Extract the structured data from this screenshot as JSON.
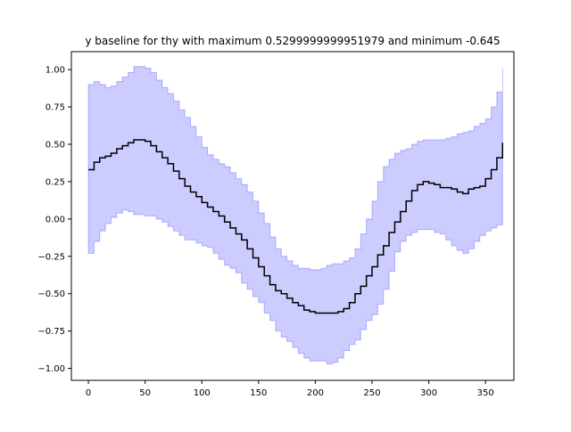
{
  "chart_data": {
    "type": "area",
    "title": "y baseline for thy with maximum 0.5299999999951979 and minimum -0.645",
    "xlabel": "",
    "ylabel": "",
    "xlim": [
      -15,
      375
    ],
    "ylim": [
      -1.08,
      1.12
    ],
    "x_ticks": [
      0,
      50,
      100,
      150,
      200,
      250,
      300,
      350
    ],
    "x_tick_labels": [
      "0",
      "50",
      "100",
      "150",
      "200",
      "250",
      "300",
      "350"
    ],
    "y_ticks": [
      -1.0,
      -0.75,
      -0.5,
      -0.25,
      0.0,
      0.25,
      0.5,
      0.75,
      1.0
    ],
    "y_tick_labels": [
      "−1.00",
      "−0.75",
      "−0.50",
      "−0.25",
      "0.00",
      "0.25",
      "0.50",
      "0.75",
      "1.00"
    ],
    "grid": false,
    "series": [
      {
        "kind": "line",
        "color": "#000000",
        "x": [
          0,
          5,
          10,
          15,
          20,
          25,
          30,
          35,
          40,
          45,
          50,
          55,
          60,
          65,
          70,
          75,
          80,
          85,
          90,
          95,
          100,
          105,
          110,
          115,
          120,
          125,
          130,
          135,
          140,
          145,
          150,
          155,
          160,
          165,
          170,
          175,
          180,
          185,
          190,
          195,
          200,
          205,
          210,
          215,
          220,
          225,
          230,
          235,
          240,
          245,
          250,
          255,
          260,
          265,
          270,
          275,
          280,
          285,
          290,
          295,
          300,
          305,
          310,
          315,
          320,
          325,
          330,
          335,
          340,
          345,
          350,
          355,
          360,
          365
        ],
        "y": [
          0.33,
          0.38,
          0.41,
          0.42,
          0.44,
          0.47,
          0.49,
          0.51,
          0.53,
          0.53,
          0.52,
          0.49,
          0.45,
          0.41,
          0.37,
          0.32,
          0.27,
          0.22,
          0.18,
          0.15,
          0.11,
          0.08,
          0.05,
          0.02,
          -0.02,
          -0.06,
          -0.1,
          -0.14,
          -0.2,
          -0.26,
          -0.32,
          -0.38,
          -0.44,
          -0.48,
          -0.5,
          -0.53,
          -0.56,
          -0.58,
          -0.61,
          -0.62,
          -0.63,
          -0.63,
          -0.63,
          -0.63,
          -0.62,
          -0.6,
          -0.56,
          -0.5,
          -0.45,
          -0.38,
          -0.32,
          -0.24,
          -0.18,
          -0.09,
          -0.02,
          0.05,
          0.12,
          0.19,
          0.23,
          0.25,
          0.24,
          0.23,
          0.21,
          0.21,
          0.2,
          0.18,
          0.17,
          0.2,
          0.21,
          0.22,
          0.27,
          0.33,
          0.41,
          0.51
        ]
      },
      {
        "kind": "band",
        "color": "#0000ff",
        "opacity": 0.2,
        "x": [
          0,
          5,
          10,
          15,
          20,
          25,
          30,
          35,
          40,
          45,
          50,
          55,
          60,
          65,
          70,
          75,
          80,
          85,
          90,
          95,
          100,
          105,
          110,
          115,
          120,
          125,
          130,
          135,
          140,
          145,
          150,
          155,
          160,
          165,
          170,
          175,
          180,
          185,
          190,
          195,
          200,
          205,
          210,
          215,
          220,
          225,
          230,
          235,
          240,
          245,
          250,
          255,
          260,
          265,
          270,
          275,
          280,
          285,
          290,
          295,
          300,
          305,
          310,
          315,
          320,
          325,
          330,
          335,
          340,
          345,
          350,
          355,
          360,
          365
        ],
        "upper": [
          0.9,
          0.92,
          0.9,
          0.88,
          0.89,
          0.92,
          0.95,
          0.98,
          1.02,
          1.02,
          1.01,
          0.98,
          0.93,
          0.88,
          0.84,
          0.79,
          0.73,
          0.68,
          0.62,
          0.55,
          0.48,
          0.43,
          0.4,
          0.37,
          0.35,
          0.31,
          0.27,
          0.23,
          0.18,
          0.12,
          0.04,
          -0.03,
          -0.12,
          -0.2,
          -0.25,
          -0.28,
          -0.31,
          -0.33,
          -0.33,
          -0.34,
          -0.34,
          -0.33,
          -0.31,
          -0.3,
          -0.3,
          -0.28,
          -0.26,
          -0.2,
          -0.1,
          0.0,
          0.12,
          0.25,
          0.35,
          0.4,
          0.44,
          0.46,
          0.47,
          0.5,
          0.52,
          0.53,
          0.53,
          0.53,
          0.53,
          0.54,
          0.55,
          0.57,
          0.58,
          0.59,
          0.62,
          0.64,
          0.67,
          0.75,
          0.85,
          1.01
        ],
        "lower": [
          -0.23,
          -0.15,
          -0.08,
          -0.03,
          0.01,
          0.04,
          0.06,
          0.05,
          0.03,
          0.03,
          0.02,
          0.02,
          0.0,
          -0.02,
          -0.05,
          -0.08,
          -0.11,
          -0.14,
          -0.14,
          -0.16,
          -0.18,
          -0.19,
          -0.23,
          -0.27,
          -0.31,
          -0.33,
          -0.36,
          -0.43,
          -0.47,
          -0.52,
          -0.56,
          -0.63,
          -0.68,
          -0.75,
          -0.79,
          -0.82,
          -0.86,
          -0.9,
          -0.93,
          -0.95,
          -0.95,
          -0.95,
          -0.97,
          -0.96,
          -0.93,
          -0.88,
          -0.84,
          -0.81,
          -0.74,
          -0.68,
          -0.64,
          -0.57,
          -0.47,
          -0.35,
          -0.22,
          -0.15,
          -0.11,
          -0.09,
          -0.07,
          -0.07,
          -0.07,
          -0.09,
          -0.1,
          -0.14,
          -0.18,
          -0.21,
          -0.23,
          -0.2,
          -0.15,
          -0.11,
          -0.08,
          -0.06,
          -0.04,
          0.0
        ]
      }
    ]
  }
}
